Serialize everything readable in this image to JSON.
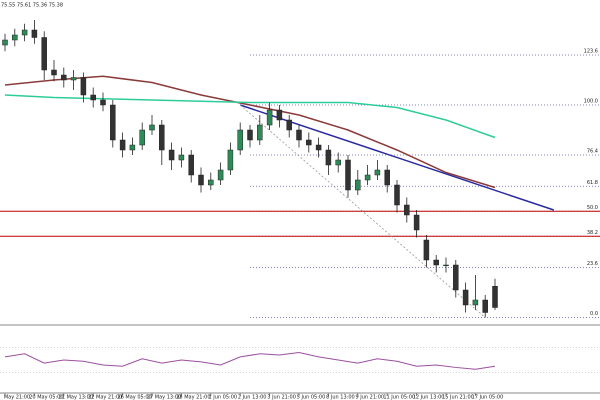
{
  "chart_data": {
    "type": "candlestick",
    "header": "75.55 75.61 75.36 75.38",
    "categories": [
      "May 21:00",
      null,
      null,
      "20 May 05:00",
      null,
      null,
      "21 May 13:00",
      null,
      null,
      "22 May 21:00",
      null,
      null,
      "26 May 05:00",
      null,
      null,
      "27 May 13:00",
      null,
      null,
      "28 May 21:00",
      null,
      null,
      "1 Jun 05:00",
      null,
      null,
      "2 Jun 13:00",
      null,
      null,
      "3 Jun 21:00",
      null,
      null,
      "5 Jun 05:00",
      null,
      null,
      "8 Jun 13:00",
      null,
      null,
      "9 Jun 21:00",
      null,
      null,
      "11 Jun 05:00",
      null,
      null,
      "12 Jun 13:00",
      null,
      null,
      "15 Jun 21:00",
      null,
      null,
      "17 Jun 05:00",
      null,
      null
    ],
    "open": [
      77.48,
      77.52,
      77.56,
      77.6,
      77.54,
      77.28,
      77.24,
      77.2,
      77.22,
      77.08,
      77.04,
      77.0,
      76.72,
      76.64,
      76.68,
      76.8,
      76.84,
      76.64,
      76.56,
      76.6,
      76.44,
      76.36,
      76.4,
      76.48,
      76.64,
      76.8,
      76.72,
      76.84,
      76.96,
      76.88,
      76.8,
      76.72,
      76.68,
      76.64,
      76.52,
      76.56,
      76.32,
      76.4,
      76.44,
      76.48,
      76.36,
      76.2,
      76.12,
      75.92,
      75.76,
      75.72,
      75.72,
      75.52,
      75.4,
      75.44,
      75.55
    ],
    "high": [
      77.57,
      77.61,
      77.65,
      77.68,
      77.59,
      77.36,
      77.3,
      77.28,
      77.26,
      77.14,
      77.1,
      77.04,
      76.78,
      76.74,
      76.86,
      76.92,
      76.88,
      76.7,
      76.66,
      76.64,
      76.5,
      76.46,
      76.54,
      76.7,
      76.86,
      76.84,
      76.92,
      77.02,
      77.0,
      76.92,
      76.84,
      76.78,
      76.74,
      76.68,
      76.62,
      76.6,
      76.48,
      76.52,
      76.56,
      76.52,
      76.4,
      76.26,
      76.16,
      75.96,
      75.8,
      75.78,
      75.76,
      75.58,
      75.64,
      75.48,
      75.61
    ],
    "low": [
      77.43,
      77.47,
      77.51,
      77.49,
      77.2,
      77.19,
      77.14,
      77.12,
      77.02,
      76.98,
      76.95,
      76.66,
      76.58,
      76.6,
      76.64,
      76.76,
      76.52,
      76.48,
      76.5,
      76.38,
      76.3,
      76.32,
      76.36,
      76.44,
      76.6,
      76.66,
      76.68,
      76.8,
      76.82,
      76.74,
      76.66,
      76.62,
      76.58,
      76.44,
      76.46,
      76.26,
      76.28,
      76.36,
      76.4,
      76.3,
      76.14,
      76.06,
      75.94,
      75.7,
      75.66,
      75.66,
      75.46,
      75.34,
      75.36,
      75.3,
      75.36
    ],
    "close": [
      77.52,
      77.56,
      77.6,
      77.54,
      77.28,
      77.24,
      77.2,
      77.22,
      77.08,
      77.04,
      77.0,
      76.72,
      76.64,
      76.68,
      76.8,
      76.84,
      76.64,
      76.56,
      76.6,
      76.44,
      76.36,
      76.4,
      76.48,
      76.64,
      76.8,
      76.72,
      76.84,
      76.96,
      76.88,
      76.8,
      76.72,
      76.68,
      76.64,
      76.52,
      76.56,
      76.32,
      76.4,
      76.44,
      76.48,
      76.36,
      76.2,
      76.12,
      76.0,
      75.76,
      75.72,
      75.72,
      75.52,
      75.4,
      75.44,
      75.34,
      75.38
    ],
    "up_color": "#2e8b57",
    "down_color": "#333333",
    "ylim": [
      75.24,
      77.84
    ],
    "overlays": [
      {
        "color": "#8b3a3a",
        "x": [
          0,
          5,
          10,
          15,
          20,
          25,
          30,
          35,
          40,
          45,
          50
        ],
        "values": [
          77.16,
          77.2,
          77.23,
          77.18,
          77.08,
          77.0,
          76.92,
          76.8,
          76.64,
          76.46,
          76.34
        ]
      },
      {
        "color": "#2ecc9a",
        "x": [
          0,
          5,
          10,
          15,
          20,
          25,
          30,
          35,
          40,
          45,
          50
        ],
        "values": [
          77.08,
          77.06,
          77.05,
          77.04,
          77.03,
          77.02,
          77.02,
          77.02,
          76.98,
          76.88,
          76.74
        ]
      }
    ],
    "trendline": {
      "color": "#2a2aa0",
      "x": [
        24,
        56
      ],
      "values": [
        77.0,
        76.16
      ]
    },
    "projection": {
      "color": "#999999",
      "x": [
        24,
        49
      ],
      "values": [
        77.0,
        75.3
      ]
    },
    "fib_levels": [
      {
        "label": "123.6",
        "price": 77.4
      },
      {
        "label": "100.0",
        "price": 77.0
      },
      {
        "label": "76.4",
        "price": 76.6
      },
      {
        "label": "61.8",
        "price": 76.35
      },
      {
        "label": "50.0",
        "price": 76.15
      },
      {
        "label": "38.2",
        "price": 75.95
      },
      {
        "label": "23.6",
        "price": 75.7
      },
      {
        "label": "0.0",
        "price": 75.3
      }
    ],
    "fib_color": "#5a5ab0",
    "resistance_levels": [
      76.15,
      75.95
    ],
    "resistance_color": "#c00000",
    "oscillator": {
      "color": "#9b4fa0",
      "x": [
        0,
        2,
        4,
        6,
        8,
        10,
        12,
        14,
        16,
        18,
        20,
        22,
        24,
        26,
        28,
        30,
        32,
        34,
        36,
        38,
        40,
        42,
        44,
        46,
        48,
        50
      ],
      "values": [
        55,
        60,
        45,
        50,
        48,
        42,
        40,
        52,
        45,
        50,
        47,
        42,
        55,
        60,
        58,
        62,
        55,
        50,
        45,
        52,
        48,
        40,
        42,
        38,
        35,
        40
      ],
      "ylim": [
        0,
        100
      ],
      "levels": [
        70,
        30
      ]
    }
  }
}
